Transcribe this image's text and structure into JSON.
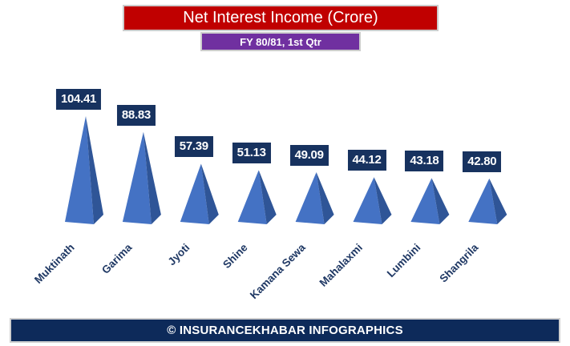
{
  "header": {
    "title": "Net Interest Income (Crore)",
    "subtitle": "FY 80/81, 1st Qtr",
    "title_bg": "#C00000",
    "subtitle_bg": "#7030A0",
    "banner_border": "#cccccc"
  },
  "chart_data": {
    "type": "bar",
    "variant": "3d-pyramid",
    "title": "Net Interest Income (Crore)",
    "subtitle": "FY 80/81, 1st Qtr",
    "unit": "Crore",
    "categories": [
      "Muktinath",
      "Garima",
      "Jyoti",
      "Shine",
      "Kamana Sewa",
      "Mahalaxmi",
      "Lumbini",
      "Shangrila"
    ],
    "values": [
      104.41,
      88.83,
      57.39,
      51.13,
      49.09,
      44.12,
      43.18,
      42.8
    ],
    "value_labels": [
      "104.41",
      "88.83",
      "57.39",
      "51.13",
      "49.09",
      "44.12",
      "43.18",
      "42.80"
    ],
    "ylim": [
      0,
      110
    ],
    "grid": false,
    "legend": false,
    "axis_lines": false,
    "colors": {
      "pyramid_front": "#4472C4",
      "pyramid_side": "#2F5597",
      "value_label_bg": "#17325F",
      "value_label_text": "#FFFFFF",
      "category_text": "#1F3864"
    }
  },
  "footer": {
    "text": "© INSURANCEKHABAR INFOGRAPHICS",
    "bg": "#0D2A5A",
    "text_color": "#FFFFFF"
  }
}
